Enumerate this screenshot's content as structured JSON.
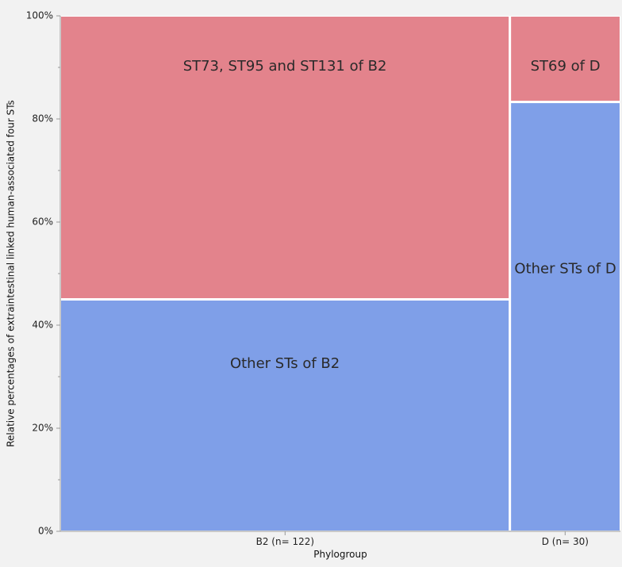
{
  "chart_data": {
    "type": "mosaic",
    "xlabel": "Phylogroup",
    "ylabel": "Relative percentages of extraintestinal linked human-associated four STs",
    "ylim": [
      0,
      100
    ],
    "y_ticks": [
      "0%",
      "20%",
      "40%",
      "60%",
      "80%",
      "100%"
    ],
    "grid": false,
    "categories": [
      {
        "label": "B2 (n= 122)",
        "n": 122,
        "segments": [
          {
            "name": "Other STs of B2",
            "value": 45,
            "color": "#7f9fe8"
          },
          {
            "name": "ST73, ST95 and ST131 of B2",
            "value": 55,
            "color": "#e3838c"
          }
        ]
      },
      {
        "label": "D (n= 30)",
        "n": 30,
        "segments": [
          {
            "name": "Other STs of D",
            "value": 83.3,
            "color": "#7f9fe8"
          },
          {
            "name": "ST69 of D",
            "value": 16.7,
            "color": "#e3838c"
          }
        ]
      }
    ]
  }
}
